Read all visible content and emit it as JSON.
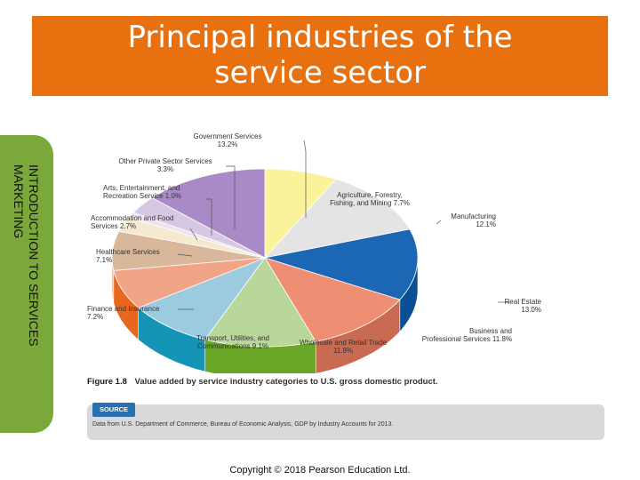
{
  "title": {
    "line1": "Principal industries of the",
    "line2": "service sector"
  },
  "side_tab": {
    "text": "INTRODUCTION TO SERVICES MARKETING"
  },
  "figure": {
    "number": "Figure 1.8",
    "caption": "Value added by service industry categories to U.S. gross domestic product.",
    "source_label": "SOURCE",
    "source_text": "Data from U.S. Department of Commerce, Bureau of Economic Analysis, GDP by Industry Accounts for 2013."
  },
  "footer": {
    "copyright": "Copyright © 2018 Pearson Education Ltd."
  },
  "chart_data": {
    "type": "pie",
    "title": "",
    "slices": [
      {
        "label": "Agriculture, Forestry, Fishing, and Mining",
        "value": 7.7,
        "value_label": "7.7%",
        "color": "#fbf39a"
      },
      {
        "label": "Manufacturing",
        "value": 12.1,
        "value_label": "12.1%",
        "color": "#e4e4e4"
      },
      {
        "label": "Real Estate",
        "value": 13.0,
        "value_label": "13.0%",
        "color": "#1b67b4"
      },
      {
        "label": "Business and Professional Services",
        "value": 11.8,
        "value_label": "11.8%",
        "color": "#ee8f73"
      },
      {
        "label": "Wholesale and Retail Trade",
        "value": 11.8,
        "value_label": "11.8%",
        "color": "#b9d69b"
      },
      {
        "label": "Transport, Utilities, and Communications",
        "value": 9.1,
        "value_label": "9.1%",
        "color": "#9ccbe0"
      },
      {
        "label": "Finance and Insurance",
        "value": 7.2,
        "value_label": "7.2%",
        "color": "#f2a486"
      },
      {
        "label": "Healthcare Services",
        "value": 7.1,
        "value_label": "7.1%",
        "color": "#d9b79a"
      },
      {
        "label": "Accommodation and Food Services",
        "value": 2.7,
        "value_label": "2.7%",
        "color": "#f5ead0"
      },
      {
        "label": "Arts, Entertainment, and Recreation Service",
        "value": 1.0,
        "value_label": "1.0%",
        "color": "#ece3ef"
      },
      {
        "label": "Other Private Sector Services",
        "value": 3.3,
        "value_label": "3.3%",
        "color": "#d6c7e3"
      },
      {
        "label": "Government Services",
        "value": 13.2,
        "value_label": "13.2%",
        "color": "#a98ac6"
      }
    ],
    "side_colors": {
      "Manufacturing": "#bdbdbd",
      "Real Estate": "#0d4f93",
      "Business and Professional Services": "#c96a52",
      "Wholesale and Retail Trade": "#6aa628",
      "Transport, Utilities, and Communications": "#1495b6",
      "Finance and Insurance": "#e8661e"
    }
  }
}
